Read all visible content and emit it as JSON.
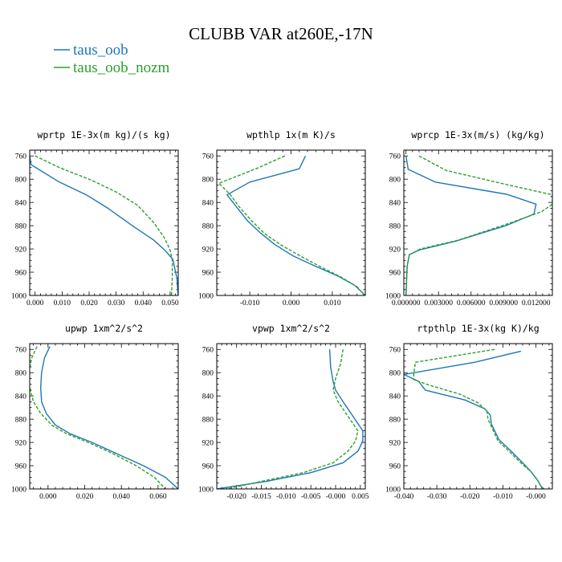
{
  "title": "CLUBB VAR at260E,-17N",
  "legend": [
    {
      "name": "taus_oob",
      "color": "#1f77b4",
      "dash": "solid"
    },
    {
      "name": "taus_oob_nozm",
      "color": "#2ca02c",
      "dash": "dashed"
    }
  ],
  "chart_data": [
    {
      "type": "line",
      "title": "wprtp  1E-3x(m kg)/(s kg)",
      "xlim": [
        -0.002,
        0.053
      ],
      "ylim": [
        1000,
        750
      ],
      "xticks": [
        0.0,
        0.01,
        0.02,
        0.03,
        0.04,
        0.05
      ],
      "xticklabels": [
        "0.000",
        "0.010",
        "0.020",
        "0.030",
        "0.040",
        "0.050"
      ],
      "yticks": [
        760,
        800,
        840,
        880,
        920,
        960,
        1000
      ],
      "series": [
        {
          "name": "taus_oob",
          "x": [
            -0.002,
            -0.0015,
            0.009,
            0.019,
            0.027,
            0.036,
            0.044,
            0.048,
            0.051,
            0.0525,
            0.053
          ],
          "y": [
            760,
            775,
            805,
            827,
            850,
            880,
            905,
            922,
            938,
            970,
            1000
          ]
        },
        {
          "name": "taus_oob_nozm",
          "x": [
            0.0,
            0.009,
            0.021,
            0.03,
            0.038,
            0.044,
            0.048,
            0.05,
            0.0508,
            0.0508,
            0.0505
          ],
          "y": [
            760,
            780,
            802,
            822,
            845,
            875,
            902,
            922,
            940,
            970,
            1000
          ]
        }
      ]
    },
    {
      "type": "line",
      "title": "wpthlp  1x(m K)/s",
      "xlim": [
        -0.018,
        0.018
      ],
      "ylim": [
        1000,
        750
      ],
      "xticks": [
        -0.01,
        0.0,
        0.01
      ],
      "xticklabels": [
        "-0.010",
        "0.000",
        "0.010"
      ],
      "yticks": [
        760,
        800,
        840,
        880,
        920,
        960,
        1000
      ],
      "series": [
        {
          "name": "taus_oob",
          "x": [
            0.0035,
            0.002,
            -0.01,
            -0.0155,
            -0.0135,
            -0.0105,
            -0.0075,
            -0.004,
            0.0005,
            0.006,
            0.0115,
            0.0155,
            0.018
          ],
          "y": [
            760,
            782,
            805,
            827,
            845,
            872,
            892,
            912,
            932,
            950,
            967,
            983,
            1000
          ]
        },
        {
          "name": "taus_oob_nozm",
          "x": [
            -0.0015,
            -0.0085,
            -0.0175,
            -0.0148,
            -0.0125,
            -0.0095,
            -0.0065,
            -0.0025,
            0.0025,
            0.0075,
            0.012,
            0.016,
            0.0178
          ],
          "y": [
            760,
            782,
            807,
            826,
            848,
            872,
            893,
            913,
            933,
            952,
            968,
            985,
            1000
          ]
        }
      ]
    },
    {
      "type": "line",
      "title": "wprcp  1E-3x(m/s) (kg/kg)",
      "xlim": [
        -0.0002,
        0.0135
      ],
      "ylim": [
        1000,
        750
      ],
      "xticks": [
        0.0,
        0.003,
        0.006,
        0.009,
        0.012
      ],
      "xticklabels": [
        "0.000000",
        "0.003000",
        "0.006000",
        "0.009000",
        "0.012000"
      ],
      "yticks": [
        760,
        800,
        840,
        880,
        920,
        960,
        1000
      ],
      "series": [
        {
          "name": "taus_oob",
          "x": [
            0.0,
            0.0002,
            0.0027,
            0.0093,
            0.012,
            0.0118,
            0.0092,
            0.0045,
            0.0012,
            0.0003,
            0.0001,
            0.0
          ],
          "y": [
            760,
            783,
            805,
            826,
            843,
            860,
            880,
            907,
            922,
            930,
            950,
            1000
          ]
        },
        {
          "name": "taus_oob_nozm",
          "x": [
            0.0012,
            0.0037,
            0.009,
            0.0135,
            0.0135,
            0.0125,
            0.0095,
            0.0048,
            0.0013,
            0.0003,
            0.0001,
            0.0
          ],
          "y": [
            760,
            785,
            808,
            827,
            843,
            856,
            876,
            905,
            920,
            930,
            950,
            1000
          ]
        }
      ]
    },
    {
      "type": "line",
      "title": "upwp  1xm^2/s^2",
      "xlim": [
        -0.01,
        0.071
      ],
      "ylim": [
        1000,
        750
      ],
      "xticks": [
        0.0,
        0.02,
        0.04,
        0.06
      ],
      "xticklabels": [
        "0.000",
        "0.020",
        "0.040",
        "0.060"
      ],
      "yticks": [
        760,
        800,
        840,
        880,
        920,
        960,
        1000
      ],
      "series": [
        {
          "name": "taus_oob",
          "x": [
            0.001,
            -0.002,
            -0.0035,
            -0.004,
            -0.0035,
            -0.001,
            0.004,
            0.012,
            0.024,
            0.038,
            0.052,
            0.064,
            0.071
          ],
          "y": [
            755,
            775,
            800,
            825,
            850,
            870,
            890,
            905,
            920,
            940,
            960,
            980,
            1000
          ]
        },
        {
          "name": "taus_oob_nozm",
          "x": [
            -0.006,
            -0.009,
            -0.0105,
            -0.01,
            -0.008,
            -0.004,
            0.002,
            0.01,
            0.022,
            0.036,
            0.048,
            0.058,
            0.064
          ],
          "y": [
            755,
            775,
            800,
            825,
            850,
            870,
            890,
            905,
            920,
            940,
            960,
            980,
            1000
          ]
        }
      ]
    },
    {
      "type": "line",
      "title": "vpwp  1xm^2/s^2",
      "xlim": [
        -0.024,
        0.006
      ],
      "ylim": [
        1000,
        750
      ],
      "xticks": [
        -0.02,
        -0.015,
        -0.01,
        -0.005,
        0.0,
        0.005
      ],
      "xticklabels": [
        "-0.020",
        "-0.015",
        "-0.010",
        "-0.005",
        "-0.000",
        "0.005"
      ],
      "yticks": [
        760,
        800,
        840,
        880,
        920,
        960,
        1000
      ],
      "series": [
        {
          "name": "taus_oob",
          "x": [
            -0.0012,
            -0.001,
            -0.0005,
            0.0,
            0.0015,
            0.0035,
            0.0055,
            0.0055,
            0.0045,
            0.0015,
            -0.005,
            -0.014,
            -0.024
          ],
          "y": [
            760,
            790,
            815,
            830,
            850,
            875,
            900,
            918,
            935,
            955,
            972,
            987,
            1000
          ]
        },
        {
          "name": "taus_oob_nozm",
          "x": [
            0.0015,
            0.001,
            0.0,
            -0.0005,
            0.0005,
            0.0025,
            0.0045,
            0.004,
            0.0025,
            -0.0005,
            -0.0065,
            -0.015,
            -0.022
          ],
          "y": [
            760,
            785,
            810,
            830,
            850,
            875,
            900,
            918,
            935,
            955,
            972,
            987,
            1000
          ]
        }
      ]
    },
    {
      "type": "line",
      "title": "rtpthlp  1E-3x(kg K)/kg",
      "xlim": [
        -0.04,
        0.005
      ],
      "ylim": [
        1000,
        750
      ],
      "xticks": [
        -0.04,
        -0.03,
        -0.02,
        -0.01,
        0.0
      ],
      "xticklabels": [
        "-0.040",
        "-0.030",
        "-0.020",
        "-0.010",
        "-0.000"
      ],
      "yticks": [
        760,
        800,
        840,
        880,
        920,
        960,
        1000
      ],
      "series": [
        {
          "name": "taus_oob",
          "x": [
            -0.0045,
            -0.0185,
            -0.04,
            -0.0355,
            -0.0335,
            -0.0215,
            -0.0155,
            -0.0138,
            -0.0135,
            -0.0112,
            -0.0075,
            -0.004,
            -0.0015,
            0.0005,
            0.0015,
            0.002
          ],
          "y": [
            763,
            782,
            803,
            815,
            830,
            847,
            862,
            873,
            888,
            915,
            935,
            955,
            970,
            985,
            995,
            1000
          ]
        },
        {
          "name": "taus_oob_nozm",
          "x": [
            -0.0125,
            -0.0365,
            -0.037,
            -0.037,
            -0.032,
            -0.023,
            -0.0175,
            -0.0148,
            -0.0145,
            -0.0115,
            -0.0078,
            -0.0042,
            -0.0015,
            0.0005,
            0.0015,
            0.0025
          ],
          "y": [
            760,
            782,
            803,
            812,
            822,
            837,
            852,
            866,
            880,
            917,
            937,
            957,
            970,
            985,
            995,
            1000
          ]
        }
      ]
    }
  ]
}
